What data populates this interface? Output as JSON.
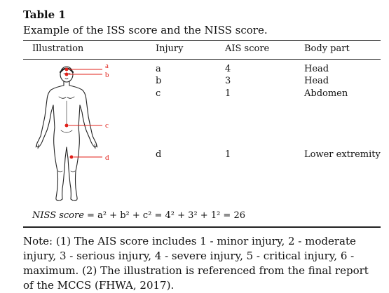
{
  "table": {
    "label": "Table 1",
    "caption": "Example of the ISS score and the NISS score.",
    "headers": [
      "Illustration",
      "Injury",
      "AIS score",
      "Body part"
    ],
    "rows": [
      {
        "injury": "a",
        "ais": "4",
        "part": "Head"
      },
      {
        "injury": "b",
        "ais": "3",
        "part": "Head"
      },
      {
        "injury": "c",
        "ais": "1",
        "part": "Abdomen"
      },
      {
        "injury": "d",
        "ais": "1",
        "part": "Lower extremity"
      }
    ],
    "figure_labels": [
      "a",
      "b",
      "c",
      "d"
    ],
    "formula": {
      "label": "NISS score",
      "expression": " = a² + b² + c²  = 4² + 3² + 1²  = 26"
    },
    "note": "Note: (1) The AIS score includes 1 - minor injury, 2 - moderate injury, 3 - serious injury, 4 - severe injury, 5 - critical injury, 6 - maximum. (2) The illustration is referenced from the final report of the MCCS (FHWA, 2017)."
  },
  "colors": {
    "marker": "#e0201a",
    "text": "#111111"
  }
}
